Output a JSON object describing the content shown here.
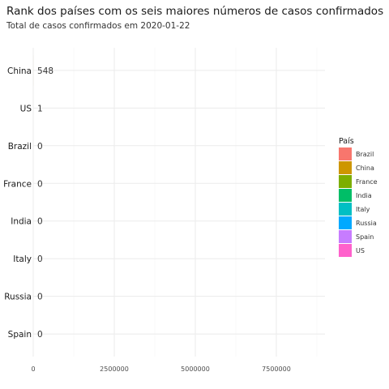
{
  "chart_data": {
    "type": "bar",
    "orientation": "horizontal",
    "title": "Rank dos países com os seis maiores números de casos confirmados",
    "subtitle": "Total de casos confirmados em 2020-01-22",
    "xlabel": "",
    "ylabel": "",
    "categories": [
      "China",
      "US",
      "Brazil",
      "France",
      "India",
      "Italy",
      "Russia",
      "Spain"
    ],
    "values": [
      548,
      1,
      0,
      0,
      0,
      0,
      0,
      0
    ],
    "value_labels": [
      "548",
      "1",
      "0",
      "0",
      "0",
      "0",
      "0",
      "0"
    ],
    "xlim": [
      0,
      9000000
    ],
    "x_ticks": [
      0,
      2500000,
      5000000,
      7500000
    ],
    "x_tick_labels": [
      "0",
      "2500000",
      "5000000",
      "7500000"
    ],
    "grid": true,
    "legend": {
      "title": "País",
      "position": "right",
      "entries": [
        {
          "label": "Brazil",
          "color": "#F8766D"
        },
        {
          "label": "China",
          "color": "#CD9600"
        },
        {
          "label": "France",
          "color": "#7CAE00"
        },
        {
          "label": "India",
          "color": "#00BE67"
        },
        {
          "label": "Italy",
          "color": "#00BFC4"
        },
        {
          "label": "Russia",
          "color": "#00A9FF"
        },
        {
          "label": "Spain",
          "color": "#C77CFF"
        },
        {
          "label": "US",
          "color": "#FF61CC"
        }
      ]
    },
    "series_colors": {
      "China": "#CD9600",
      "US": "#FF61CC",
      "Brazil": "#F8766D",
      "France": "#7CAE00",
      "India": "#00BE67",
      "Italy": "#00BFC4",
      "Russia": "#00A9FF",
      "Spain": "#C77CFF"
    }
  }
}
